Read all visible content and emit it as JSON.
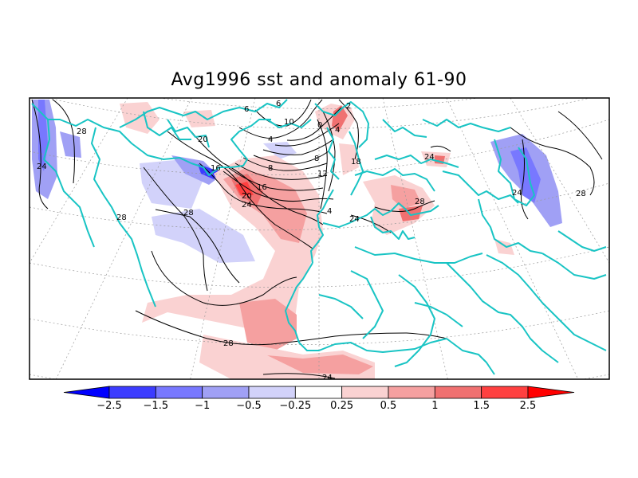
{
  "title": "Avg1996 sst and anomaly 61-90",
  "contour_labels": {
    "c4a": "4",
    "c6": "6",
    "c6b": "6",
    "c0": "0",
    "c4b": "4",
    "c10": "10",
    "c2": "2",
    "c4c": "4",
    "c8a": "8",
    "c8b": "8",
    "c12": "12",
    "c16a": "16",
    "c16b": "16",
    "c18": "18",
    "c20a": "20",
    "c20b": "20",
    "c24a": "24",
    "c24b": "24",
    "c24c": "24",
    "c24d": "24",
    "c24e": "24",
    "c24f": "24",
    "c28a": "28",
    "c28b": "28",
    "c28c": "28",
    "c28d": "28",
    "c28e": "28",
    "c28f": "28"
  },
  "colorbar": {
    "labels": [
      "−2.5",
      "−1.5",
      "−1",
      "−0.5",
      "−0.25",
      "0.25",
      "0.5",
      "1",
      "1.5",
      "2.5"
    ],
    "colors": [
      "#0000ff",
      "#3c3cff",
      "#7878ff",
      "#a0a0f5",
      "#d2d2fa",
      "#ffffff",
      "#fad2d2",
      "#f5a0a0",
      "#f07070",
      "#ff4040",
      "#ff0000"
    ]
  },
  "colors": {
    "coastline": "#19c4c4",
    "contour": "#000000",
    "graticule": "#9a9a9a"
  }
}
